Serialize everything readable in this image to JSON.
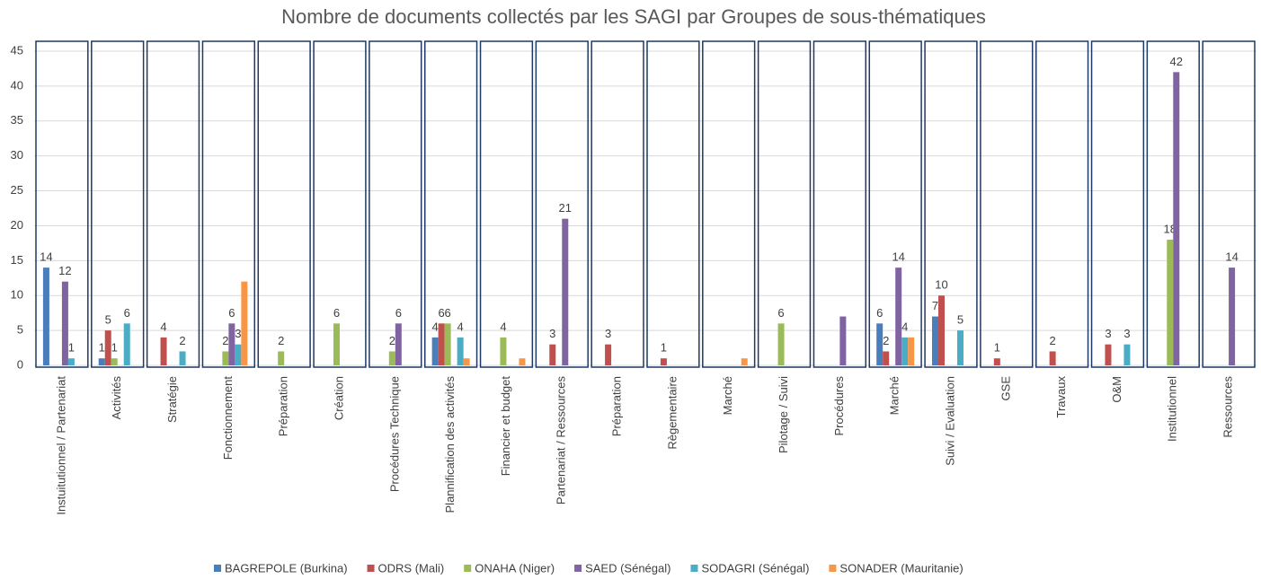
{
  "chart_data": {
    "type": "bar",
    "title": "Nombre de documents collectés par les SAGI par Groupes de sous-thématiques",
    "categories": [
      "Instuitutionnel / Partenariat",
      "Activités",
      "Stratégie",
      "Fonctionnement",
      "Préparation",
      "Création",
      "Procédures Technique",
      "Plannification des activités",
      "Financier et budget",
      "Partenariat / Ressources",
      "Préparation",
      "Règementaire",
      "Marché",
      "Pilotage / Suivi",
      "Procédures",
      "Marché",
      "Suivi / Evaluation",
      "GSE",
      "Travaux",
      "O&M",
      "Institutionnel",
      "Ressources"
    ],
    "series": [
      {
        "name": "BAGREPOLE (Burkina)",
        "color": "#4a7ebb",
        "values": [
          14,
          1,
          0,
          0,
          0,
          0,
          0,
          4,
          0,
          0,
          0,
          0,
          0,
          0,
          0,
          6,
          7,
          0,
          0,
          0,
          0,
          0
        ],
        "value_labels": [
          "14",
          "1",
          null,
          null,
          null,
          null,
          null,
          "4",
          null,
          null,
          null,
          null,
          null,
          null,
          null,
          "6",
          "7",
          null,
          null,
          null,
          null,
          null
        ]
      },
      {
        "name": "ODRS (Mali)",
        "color": "#c0504d",
        "values": [
          0,
          5,
          4,
          0,
          0,
          0,
          0,
          6,
          0,
          3,
          3,
          1,
          0,
          0,
          0,
          2,
          10,
          1,
          2,
          3,
          0,
          0
        ],
        "value_labels": [
          null,
          "5",
          "4",
          null,
          null,
          null,
          null,
          "6",
          null,
          "3",
          "3",
          "1",
          null,
          null,
          null,
          "2",
          "10",
          "1",
          "2",
          "3",
          null,
          null
        ]
      },
      {
        "name": "ONAHA (Niger)",
        "color": "#9bbb59",
        "values": [
          0,
          1,
          0,
          2,
          2,
          6,
          2,
          6,
          4,
          0,
          0,
          0,
          0,
          6,
          0,
          0,
          0,
          0,
          0,
          0,
          18,
          0
        ],
        "value_labels": [
          null,
          "1",
          null,
          "2",
          "2",
          "6",
          "2",
          "6",
          "4",
          null,
          null,
          null,
          null,
          "6",
          null,
          null,
          null,
          null,
          null,
          null,
          "18",
          null
        ]
      },
      {
        "name": "SAED (Sénégal)",
        "color": "#8064a2",
        "values": [
          12,
          0,
          0,
          6,
          0,
          0,
          6,
          0,
          0,
          21,
          0,
          0,
          0,
          0,
          7,
          14,
          0,
          0,
          0,
          0,
          42,
          14
        ],
        "value_labels": [
          "12",
          null,
          null,
          "6",
          null,
          null,
          "6",
          null,
          null,
          "21",
          null,
          null,
          null,
          null,
          null,
          "14",
          null,
          null,
          null,
          null,
          "42",
          "14"
        ]
      },
      {
        "name": "SODAGRI (Sénégal)",
        "color": "#4bacc6",
        "values": [
          1,
          6,
          2,
          3,
          0,
          0,
          0,
          4,
          0,
          0,
          0,
          0,
          0,
          0,
          0,
          4,
          5,
          0,
          0,
          3,
          0,
          0
        ],
        "value_labels": [
          "1",
          "6",
          "2",
          "3",
          null,
          null,
          null,
          "4",
          null,
          null,
          null,
          null,
          null,
          null,
          null,
          "4",
          "5",
          null,
          null,
          "3",
          null,
          null
        ]
      },
      {
        "name": "SONADER (Mauritanie)",
        "color": "#f79646",
        "values": [
          0,
          0,
          0,
          12,
          0,
          0,
          0,
          1,
          1,
          0,
          0,
          0,
          1,
          0,
          0,
          4,
          0,
          0,
          0,
          0,
          0,
          0
        ],
        "value_labels": [
          null,
          null,
          null,
          null,
          null,
          null,
          null,
          null,
          null,
          null,
          null,
          null,
          null,
          null,
          null,
          null,
          null,
          null,
          null,
          null,
          null,
          null
        ]
      }
    ],
    "ylim": [
      0,
      45
    ],
    "yticks": [
      0,
      5,
      10,
      15,
      20,
      25,
      30,
      35,
      40,
      45
    ],
    "grid": true,
    "legend": "bottom"
  }
}
